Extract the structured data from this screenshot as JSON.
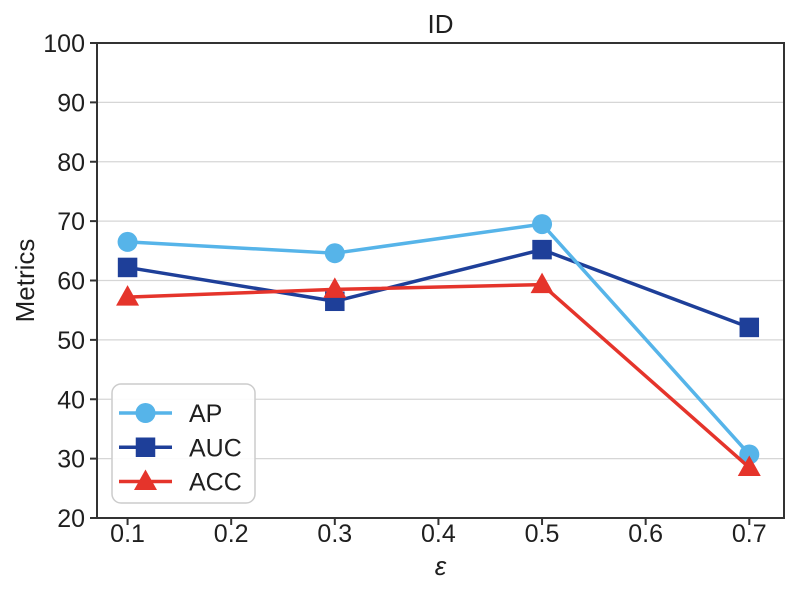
{
  "figure": {
    "title": "ID",
    "x_axis_label": "ε",
    "y_axis_label": "Metrics"
  },
  "chart_data": {
    "type": "line",
    "title": "ID",
    "xlabel": "ε",
    "ylabel": "Metrics",
    "x": [
      0.1,
      0.3,
      0.5,
      0.7
    ],
    "xticks": [
      0.1,
      0.2,
      0.3,
      0.4,
      0.5,
      0.6,
      0.7
    ],
    "yticks": [
      20,
      30,
      40,
      50,
      60,
      70,
      80,
      90,
      100
    ],
    "xlim": [
      0.0705,
      0.7335
    ],
    "ylim": [
      20,
      100
    ],
    "grid": "horizontal-only",
    "legend": {
      "position": "lower-left",
      "entries": [
        "AP",
        "AUC",
        "ACC"
      ]
    },
    "series": [
      {
        "name": "AP",
        "marker": "circle",
        "color": "#56B4E9",
        "values": [
          66.5,
          64.6,
          69.5,
          30.7
        ]
      },
      {
        "name": "AUC",
        "marker": "square",
        "color": "#1E3F99",
        "values": [
          62.2,
          56.5,
          65.2,
          52.1
        ]
      },
      {
        "name": "ACC",
        "marker": "triangle",
        "color": "#E5342B",
        "values": [
          57.2,
          58.5,
          59.3,
          28.5
        ]
      }
    ],
    "colors": {
      "axis": "#333333",
      "grid": "#d6d6d6",
      "text": "#1f1f1f",
      "legend_border": "#cccccc",
      "background": "#ffffff"
    }
  }
}
